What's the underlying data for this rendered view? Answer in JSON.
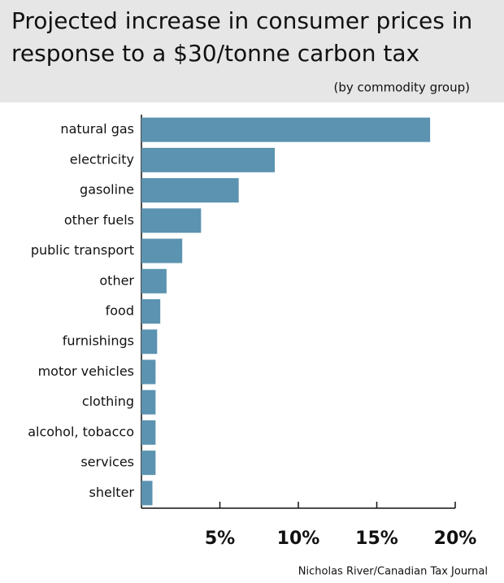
{
  "chart_data": {
    "type": "bar",
    "orientation": "horizontal",
    "title": "Projected increase in consumer prices in response to a $30/tonne carbon tax",
    "subtitle": "(by commodity group)",
    "source": "Nicholas River/Canadian Tax Journal",
    "categories": [
      "natural gas",
      "electricity",
      "gasoline",
      "other fuels",
      "public transport",
      "other",
      "food",
      "furnishings",
      "motor vehicles",
      "clothing",
      "alcohol, tobacco",
      "services",
      "shelter"
    ],
    "values": [
      18.4,
      8.5,
      6.2,
      3.8,
      2.6,
      1.6,
      1.2,
      1.0,
      0.9,
      0.9,
      0.9,
      0.9,
      0.7
    ],
    "color": "#5b93b0",
    "xlim": [
      0,
      20
    ],
    "xticks": [
      {
        "value": 5,
        "label": "5%"
      },
      {
        "value": 10,
        "label": "10%"
      },
      {
        "value": 15,
        "label": "15%"
      },
      {
        "value": 20,
        "label": "20%"
      }
    ],
    "grid": false
  }
}
